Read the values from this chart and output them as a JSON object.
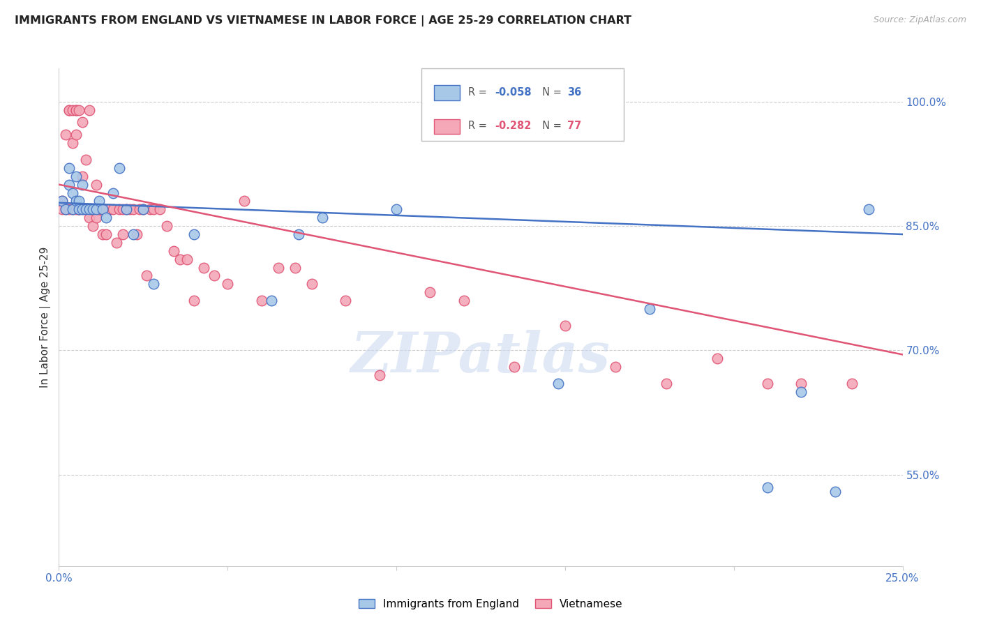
{
  "title": "IMMIGRANTS FROM ENGLAND VS VIETNAMESE IN LABOR FORCE | AGE 25-29 CORRELATION CHART",
  "source": "Source: ZipAtlas.com",
  "ylabel": "In Labor Force | Age 25-29",
  "ytick_labels": [
    "100.0%",
    "85.0%",
    "70.0%",
    "55.0%"
  ],
  "ytick_values": [
    1.0,
    0.85,
    0.7,
    0.55
  ],
  "xlim": [
    0.0,
    0.25
  ],
  "ylim": [
    0.44,
    1.04
  ],
  "legend_england_r": "-0.058",
  "legend_england_n": "36",
  "legend_vietnamese_r": "-0.282",
  "legend_vietnamese_n": "77",
  "england_color": "#a8c8e8",
  "vietnamese_color": "#f4a8b8",
  "england_line_color": "#4472c4",
  "vietnamese_line_color": "#e05575",
  "watermark": "ZIPatlas",
  "england_x": [
    0.001,
    0.002,
    0.003,
    0.003,
    0.004,
    0.004,
    0.005,
    0.005,
    0.006,
    0.006,
    0.007,
    0.007,
    0.008,
    0.009,
    0.01,
    0.011,
    0.012,
    0.013,
    0.014,
    0.016,
    0.018,
    0.02,
    0.022,
    0.025,
    0.028,
    0.04,
    0.063,
    0.071,
    0.078,
    0.1,
    0.148,
    0.175,
    0.21,
    0.22,
    0.23,
    0.24
  ],
  "england_y": [
    0.88,
    0.87,
    0.9,
    0.92,
    0.89,
    0.87,
    0.91,
    0.88,
    0.88,
    0.87,
    0.87,
    0.9,
    0.87,
    0.87,
    0.87,
    0.87,
    0.88,
    0.87,
    0.86,
    0.89,
    0.92,
    0.87,
    0.84,
    0.87,
    0.78,
    0.84,
    0.76,
    0.84,
    0.86,
    0.87,
    0.66,
    0.75,
    0.535,
    0.65,
    0.53,
    0.87
  ],
  "vietnamese_x": [
    0.001,
    0.001,
    0.002,
    0.002,
    0.003,
    0.003,
    0.003,
    0.004,
    0.004,
    0.004,
    0.005,
    0.005,
    0.005,
    0.005,
    0.006,
    0.006,
    0.006,
    0.006,
    0.007,
    0.007,
    0.007,
    0.008,
    0.008,
    0.009,
    0.009,
    0.009,
    0.01,
    0.01,
    0.01,
    0.011,
    0.011,
    0.012,
    0.012,
    0.013,
    0.013,
    0.014,
    0.015,
    0.016,
    0.017,
    0.018,
    0.019,
    0.019,
    0.02,
    0.021,
    0.022,
    0.023,
    0.024,
    0.025,
    0.026,
    0.027,
    0.028,
    0.03,
    0.032,
    0.034,
    0.036,
    0.038,
    0.04,
    0.043,
    0.046,
    0.05,
    0.055,
    0.06,
    0.065,
    0.07,
    0.075,
    0.085,
    0.095,
    0.11,
    0.12,
    0.135,
    0.15,
    0.165,
    0.18,
    0.195,
    0.21,
    0.22,
    0.235
  ],
  "vietnamese_y": [
    0.88,
    0.87,
    0.96,
    0.87,
    0.99,
    0.99,
    0.87,
    0.99,
    0.95,
    0.87,
    0.99,
    0.99,
    0.96,
    0.87,
    0.99,
    0.87,
    0.87,
    0.87,
    0.975,
    0.87,
    0.91,
    0.93,
    0.87,
    0.99,
    0.87,
    0.86,
    0.87,
    0.87,
    0.85,
    0.9,
    0.86,
    0.87,
    0.87,
    0.87,
    0.84,
    0.84,
    0.87,
    0.87,
    0.83,
    0.87,
    0.87,
    0.84,
    0.87,
    0.87,
    0.87,
    0.84,
    0.87,
    0.87,
    0.79,
    0.87,
    0.87,
    0.87,
    0.85,
    0.82,
    0.81,
    0.81,
    0.76,
    0.8,
    0.79,
    0.78,
    0.88,
    0.76,
    0.8,
    0.8,
    0.78,
    0.76,
    0.67,
    0.77,
    0.76,
    0.68,
    0.73,
    0.68,
    0.66,
    0.69,
    0.66,
    0.66,
    0.66
  ],
  "eng_line_x0": 0.0,
  "eng_line_x1": 0.25,
  "eng_line_y0": 0.878,
  "eng_line_y1": 0.84,
  "viet_line_x0": 0.0,
  "viet_line_x1": 0.25,
  "viet_line_y0": 0.9,
  "viet_line_y1": 0.695
}
